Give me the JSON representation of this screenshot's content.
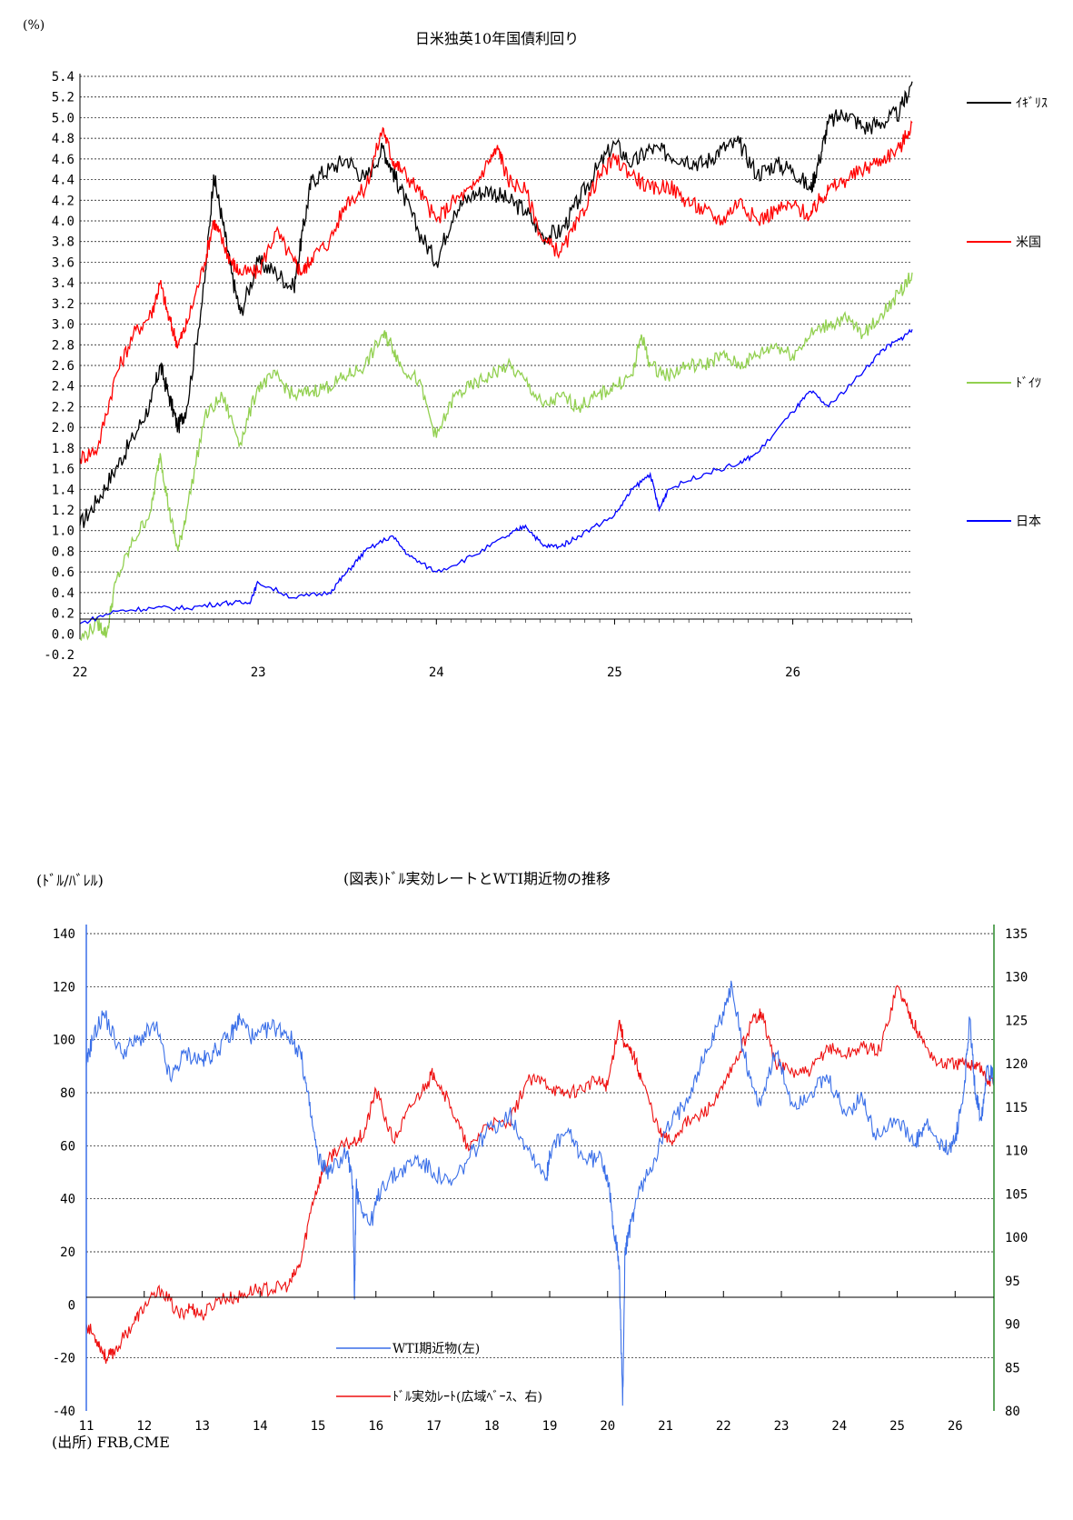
{
  "chart_data": [
    {
      "type": "line",
      "title": "日米独英10年国債利回り",
      "ylabel": "(%)",
      "xlabel": "",
      "xlim": [
        22.0,
        26.67
      ],
      "ylim": [
        -0.2,
        5.4
      ],
      "yticks": [
        "-0.2",
        "0.0",
        "0.2",
        "0.4",
        "0.6",
        "0.8",
        "1.0",
        "1.2",
        "1.4",
        "1.6",
        "1.8",
        "2.0",
        "2.2",
        "2.4",
        "2.6",
        "2.8",
        "3.0",
        "3.2",
        "3.4",
        "3.6",
        "3.8",
        "4.0",
        "4.2",
        "4.4",
        "4.6",
        "4.8",
        "5.0",
        "5.2",
        "5.4"
      ],
      "xticks": [
        "22",
        "23",
        "24",
        "25",
        "26"
      ],
      "grid": true,
      "legend": "right",
      "series": [
        {
          "name": "ｲｷﾞﾘｽ",
          "color": "#000000",
          "x": [
            22.0,
            22.1,
            22.2,
            22.3,
            22.4,
            22.45,
            22.5,
            22.55,
            22.6,
            22.7,
            22.75,
            22.8,
            22.85,
            22.9,
            23.0,
            23.1,
            23.2,
            23.25,
            23.3,
            23.4,
            23.5,
            23.6,
            23.7,
            23.75,
            23.8,
            23.9,
            24.0,
            24.1,
            24.2,
            24.3,
            24.4,
            24.5,
            24.6,
            24.7,
            24.8,
            24.9,
            25.0,
            25.1,
            25.2,
            25.3,
            25.4,
            25.5,
            25.6,
            25.7,
            25.8,
            25.9,
            26.0,
            26.1,
            26.15,
            26.2,
            26.3,
            26.4,
            26.5,
            26.6,
            26.67
          ],
          "y": [
            1.05,
            1.3,
            1.6,
            1.9,
            2.25,
            2.6,
            2.3,
            2.0,
            2.2,
            3.4,
            4.45,
            4.0,
            3.5,
            3.1,
            3.6,
            3.5,
            3.35,
            3.9,
            4.4,
            4.5,
            4.6,
            4.4,
            4.7,
            4.5,
            4.3,
            3.9,
            3.6,
            4.1,
            4.25,
            4.3,
            4.2,
            4.1,
            3.85,
            3.9,
            4.2,
            4.5,
            4.75,
            4.55,
            4.7,
            4.65,
            4.6,
            4.55,
            4.7,
            4.75,
            4.45,
            4.55,
            4.5,
            4.3,
            4.6,
            4.95,
            5.05,
            4.9,
            4.95,
            5.05,
            5.35
          ]
        },
        {
          "name": "米国",
          "color": "#ff0000",
          "x": [
            22.0,
            22.1,
            22.2,
            22.3,
            22.4,
            22.45,
            22.5,
            22.55,
            22.6,
            22.7,
            22.75,
            22.8,
            22.85,
            22.9,
            23.0,
            23.1,
            23.2,
            23.25,
            23.3,
            23.4,
            23.5,
            23.6,
            23.7,
            23.75,
            23.8,
            23.9,
            24.0,
            24.1,
            24.2,
            24.3,
            24.35,
            24.4,
            24.5,
            24.6,
            24.7,
            24.8,
            24.9,
            25.0,
            25.1,
            25.2,
            25.3,
            25.4,
            25.5,
            25.6,
            25.7,
            25.8,
            25.9,
            26.0,
            26.1,
            26.15,
            26.2,
            26.3,
            26.4,
            26.5,
            26.6,
            26.67
          ],
          "y": [
            1.7,
            1.8,
            2.5,
            2.9,
            3.1,
            3.4,
            3.05,
            2.8,
            3.0,
            3.6,
            4.0,
            3.8,
            3.6,
            3.5,
            3.5,
            3.9,
            3.6,
            3.5,
            3.65,
            3.8,
            4.2,
            4.3,
            4.9,
            4.6,
            4.5,
            4.3,
            4.0,
            4.2,
            4.3,
            4.6,
            4.7,
            4.4,
            4.3,
            3.8,
            3.7,
            4.0,
            4.4,
            4.6,
            4.45,
            4.3,
            4.35,
            4.2,
            4.1,
            4.0,
            4.2,
            4.0,
            4.1,
            4.15,
            4.05,
            4.2,
            4.3,
            4.4,
            4.5,
            4.6,
            4.7,
            4.95
          ]
        },
        {
          "name": "ﾄﾞｲﾂ",
          "color": "#92d050",
          "x": [
            22.0,
            22.1,
            22.15,
            22.2,
            22.3,
            22.4,
            22.45,
            22.5,
            22.55,
            22.6,
            22.7,
            22.8,
            22.9,
            23.0,
            23.1,
            23.2,
            23.3,
            23.4,
            23.5,
            23.6,
            23.7,
            23.75,
            23.8,
            23.9,
            24.0,
            24.1,
            24.2,
            24.3,
            24.4,
            24.5,
            24.6,
            24.7,
            24.8,
            24.9,
            25.0,
            25.1,
            25.15,
            25.2,
            25.3,
            25.4,
            25.5,
            25.6,
            25.7,
            25.8,
            25.9,
            26.0,
            26.1,
            26.2,
            26.3,
            26.4,
            26.5,
            26.6,
            26.67
          ],
          "y": [
            -0.05,
            0.1,
            0.0,
            0.5,
            0.9,
            1.2,
            1.75,
            1.2,
            0.8,
            1.2,
            2.1,
            2.3,
            1.85,
            2.4,
            2.5,
            2.3,
            2.35,
            2.4,
            2.5,
            2.6,
            2.9,
            2.8,
            2.6,
            2.45,
            1.9,
            2.3,
            2.4,
            2.5,
            2.6,
            2.45,
            2.2,
            2.3,
            2.2,
            2.3,
            2.4,
            2.5,
            2.9,
            2.6,
            2.5,
            2.6,
            2.6,
            2.7,
            2.6,
            2.7,
            2.8,
            2.7,
            2.9,
            3.0,
            3.05,
            2.9,
            3.1,
            3.3,
            3.5
          ]
        },
        {
          "name": "日本",
          "color": "#0000ff",
          "x": [
            22.0,
            22.2,
            22.4,
            22.6,
            22.8,
            22.95,
            23.0,
            23.2,
            23.4,
            23.5,
            23.6,
            23.75,
            23.85,
            24.0,
            24.2,
            24.4,
            24.5,
            24.6,
            24.7,
            24.8,
            25.0,
            25.1,
            25.2,
            25.25,
            25.3,
            25.5,
            25.7,
            25.8,
            26.0,
            26.1,
            26.2,
            26.4,
            26.5,
            26.6,
            26.67
          ],
          "y": [
            0.1,
            0.22,
            0.25,
            0.25,
            0.3,
            0.3,
            0.5,
            0.35,
            0.4,
            0.6,
            0.8,
            0.95,
            0.75,
            0.6,
            0.75,
            0.95,
            1.05,
            0.85,
            0.85,
            0.95,
            1.15,
            1.4,
            1.55,
            1.2,
            1.4,
            1.55,
            1.65,
            1.75,
            2.15,
            2.35,
            2.2,
            2.55,
            2.75,
            2.85,
            2.95
          ]
        }
      ]
    },
    {
      "type": "line",
      "title": "(図表)ﾄﾞﾙ実効レートとWTI期近物の推移",
      "ylabel": "(ﾄﾞﾙ/ﾊﾞﾚﾙ)",
      "xlabel": "",
      "source": "(出所) FRB,CME",
      "xlim": [
        11.0,
        26.67
      ],
      "ylim_left": [
        -40,
        140
      ],
      "ylim_right": [
        80,
        135
      ],
      "yticks_left": [
        "-40",
        "-20",
        "0",
        "20",
        "40",
        "60",
        "80",
        "100",
        "120",
        "140"
      ],
      "yticks_right": [
        "80",
        "85",
        "90",
        "95",
        "100",
        "105",
        "110",
        "115",
        "120",
        "125",
        "130",
        "135"
      ],
      "xticks": [
        "11",
        "12",
        "13",
        "14",
        "15",
        "16",
        "17",
        "18",
        "19",
        "20",
        "21",
        "22",
        "23",
        "24",
        "25",
        "26"
      ],
      "grid": true,
      "legend": "bottom-left",
      "series": [
        {
          "name": "WTI期近物(左)",
          "axis": "left",
          "color": "#3a6fe8",
          "x": [
            11.0,
            11.1,
            11.3,
            11.6,
            11.9,
            12.2,
            12.45,
            12.7,
            13.0,
            13.2,
            13.5,
            13.65,
            13.9,
            14.2,
            14.45,
            14.7,
            14.85,
            15.0,
            15.2,
            15.5,
            15.6,
            15.63,
            15.66,
            15.7,
            15.9,
            16.1,
            16.4,
            16.7,
            17.0,
            17.3,
            17.6,
            17.9,
            18.3,
            18.6,
            18.95,
            19.0,
            19.3,
            19.6,
            19.9,
            20.0,
            20.1,
            20.2,
            20.26,
            20.3,
            20.35,
            20.5,
            20.8,
            21.0,
            21.3,
            21.6,
            21.9,
            22.15,
            22.35,
            22.6,
            22.9,
            23.2,
            23.5,
            23.8,
            24.1,
            24.4,
            24.6,
            25.0,
            25.3,
            25.5,
            25.8,
            26.0,
            26.15,
            26.25,
            26.35,
            26.45,
            26.55,
            26.67
          ],
          "y": [
            90,
            100,
            110,
            95,
            100,
            105,
            85,
            95,
            92,
            95,
            102,
            108,
            100,
            105,
            103,
            95,
            75,
            55,
            50,
            58,
            45,
            2,
            45,
            40,
            30,
            45,
            50,
            55,
            50,
            45,
            55,
            65,
            72,
            60,
            48,
            58,
            65,
            55,
            55,
            48,
            30,
            15,
            -38,
            20,
            25,
            40,
            55,
            65,
            75,
            90,
            105,
            120,
            95,
            75,
            95,
            75,
            80,
            85,
            72,
            78,
            65,
            70,
            60,
            68,
            58,
            62,
            80,
            108,
            80,
            70,
            90,
            85
          ]
        },
        {
          "name": "ﾄﾞﾙ実効ﾚｰﾄ(広域ﾍﾞｰｽ、右)",
          "axis": "right",
          "color": "#ee1010",
          "x": [
            11.0,
            11.2,
            11.35,
            11.5,
            11.8,
            12.0,
            12.3,
            12.6,
            12.8,
            13.0,
            13.3,
            13.6,
            13.9,
            14.2,
            14.5,
            14.7,
            14.9,
            15.1,
            15.3,
            15.6,
            15.8,
            16.0,
            16.3,
            16.6,
            16.9,
            17.0,
            17.3,
            17.6,
            17.9,
            18.3,
            18.6,
            18.9,
            19.2,
            19.5,
            19.8,
            20.0,
            20.2,
            20.3,
            20.45,
            20.6,
            20.9,
            21.1,
            21.3,
            21.6,
            21.9,
            22.2,
            22.5,
            22.65,
            22.9,
            23.2,
            23.5,
            23.8,
            24.1,
            24.4,
            24.7,
            25.0,
            25.2,
            25.4,
            25.7,
            26.0,
            26.2,
            26.4,
            26.55,
            26.67
          ],
          "y": [
            90,
            88,
            86,
            87,
            90,
            92,
            94,
            91,
            92,
            91,
            93,
            93,
            94,
            94,
            94.5,
            97,
            104,
            108,
            110,
            111,
            112,
            117,
            111,
            115,
            118,
            119,
            115,
            110,
            113,
            113,
            118,
            118,
            116.5,
            117,
            118,
            117.5,
            125,
            122,
            121,
            118,
            112,
            111,
            113,
            114,
            116,
            120,
            125,
            126,
            120,
            119,
            119,
            122,
            121,
            122,
            121.5,
            129,
            126,
            123,
            120,
            120,
            120,
            120,
            118,
            118
          ]
        }
      ]
    }
  ]
}
